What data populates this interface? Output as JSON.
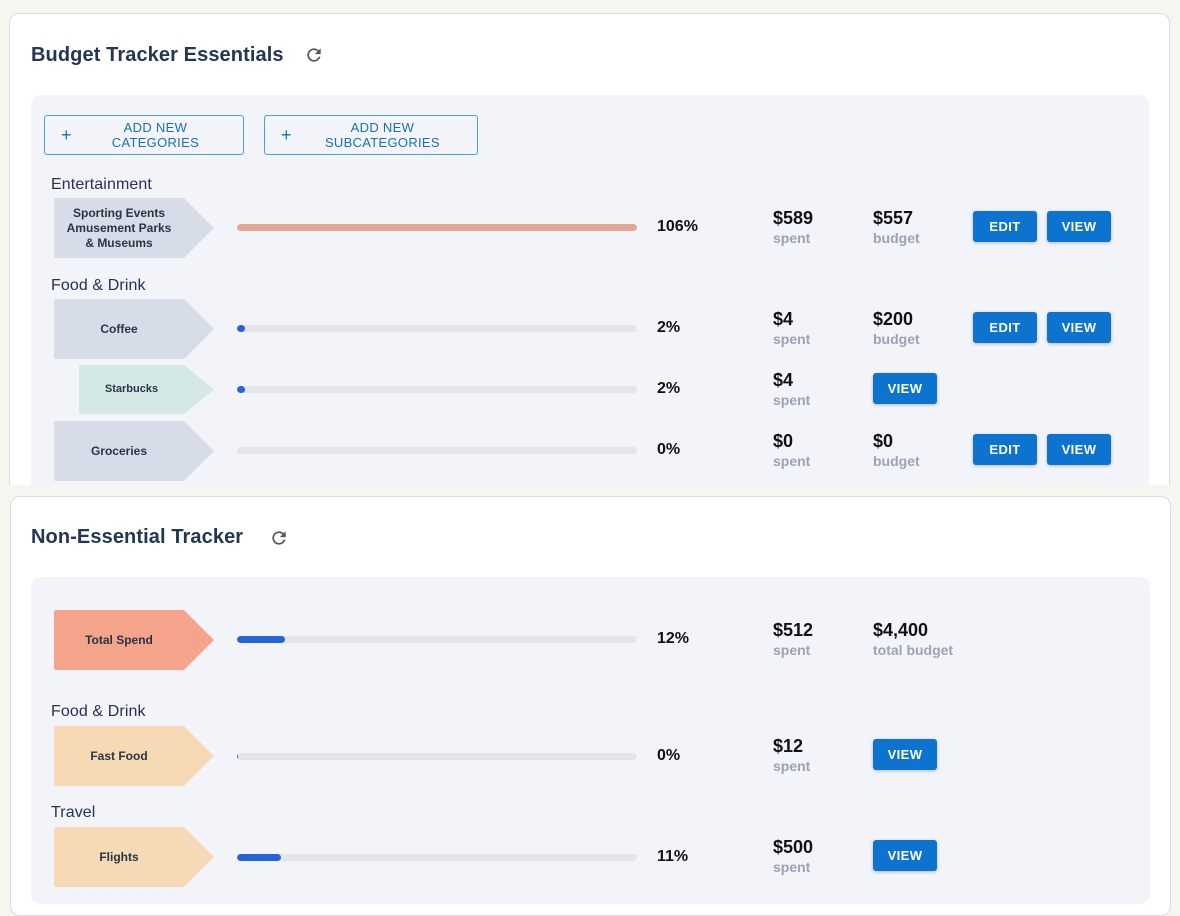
{
  "essentials": {
    "title": "Budget Tracker Essentials",
    "add_categories_label": "ADD NEW CATEGORIES",
    "add_subcategories_label": "ADD NEW SUBCATEGORIES",
    "groups": [
      {
        "label": "Entertainment",
        "rows": [
          {
            "lines": [
              "Sporting Events",
              "Amusement Parks",
              "& Museums"
            ],
            "percent": 106,
            "percent_text": "106%",
            "spent": "$589",
            "budget": "$557",
            "fill_color": "#e3a895",
            "tag_color": "#d6dce8"
          }
        ]
      },
      {
        "label": "Food & Drink",
        "rows": [
          {
            "lines": [
              "Coffee"
            ],
            "percent": 2,
            "percent_text": "2%",
            "spent": "$4",
            "budget": "$200",
            "fill_color": "#2563d9",
            "tag_color": "#d6dce8"
          },
          {
            "lines": [
              "Starbucks"
            ],
            "percent": 2,
            "percent_text": "2%",
            "spent": "$4",
            "budget": null,
            "fill_color": "#2563d9",
            "tag_color": "#d4e8e6"
          },
          {
            "lines": [
              "Groceries"
            ],
            "percent": 0,
            "percent_text": "0%",
            "spent": "$0",
            "budget": "$0",
            "fill_color": "#2563d9",
            "tag_color": "#d6dce8"
          }
        ]
      }
    ]
  },
  "nonessential": {
    "title": "Non-Essential Tracker",
    "total": {
      "label": "Total Spend",
      "percent": 12,
      "percent_text": "12%",
      "spent": "$512",
      "budget": "$4,400",
      "budget_caption": "total budget",
      "tag_color": "#f4a48a"
    },
    "groups": [
      {
        "label": "Food & Drink",
        "rows": [
          {
            "lines": [
              "Fast Food"
            ],
            "percent": 0,
            "percent_text": "0%",
            "spent": "$12",
            "tag_color": "#f6dab6"
          }
        ]
      },
      {
        "label": "Travel",
        "rows": [
          {
            "lines": [
              "Flights"
            ],
            "percent": 11,
            "percent_text": "11%",
            "spent": "$500",
            "tag_color": "#f6dab6"
          }
        ]
      }
    ]
  },
  "captions": {
    "spent": "spent",
    "budget": "budget"
  },
  "buttons": {
    "edit": "EDIT",
    "view": "VIEW"
  },
  "icons": {
    "refresh": "refresh-icon",
    "plus": "plus-icon"
  },
  "colors": {
    "primary": "#0c73ce",
    "progress": "#2563d9",
    "over_budget": "#e3a895",
    "heading": "#253652",
    "panel": "#f2f4fa"
  }
}
